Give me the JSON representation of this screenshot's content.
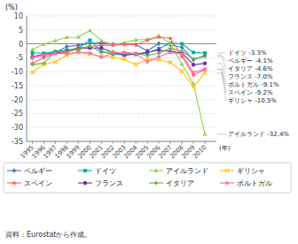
{
  "chart_data": {
    "type": "line",
    "x_label": "(年)",
    "y_label": "(%)",
    "x": [
      1995,
      1996,
      1997,
      1998,
      1999,
      2000,
      2001,
      2002,
      2003,
      2004,
      2005,
      2006,
      2007,
      2008,
      2009,
      2010
    ],
    "xlim": [
      1994.5,
      2011.0
    ],
    "xticks": [
      1995,
      1996,
      1997,
      1998,
      1999,
      2000,
      2001,
      2002,
      2003,
      2004,
      2005,
      2006,
      2007,
      2008,
      2009,
      2010
    ],
    "ylim": [
      -35,
      10
    ],
    "yticks": [
      10,
      5,
      0,
      -5,
      -10,
      -15,
      -20,
      -25,
      -30,
      -35
    ],
    "grid": true,
    "legend": "bottom",
    "series": [
      {
        "name": "ベルギー",
        "color": "#4472c4",
        "marker": "diamond",
        "values": [
          -4.5,
          -3.8,
          -3.1,
          -1.0,
          -0.5,
          0.1,
          0.4,
          -0.1,
          -0.1,
          -0.3,
          -2.5,
          0.1,
          -0.3,
          -1.3,
          -5.8,
          -4.1
        ]
      },
      {
        "name": "ドイツ",
        "color": "#00b0a0",
        "marker": "square",
        "values": [
          -3.3,
          -3.4,
          -2.7,
          -2.3,
          -1.6,
          1.3,
          -2.8,
          -3.7,
          -4.0,
          -3.8,
          -3.3,
          -1.7,
          0.2,
          0.0,
          -3.1,
          -3.3
        ]
      },
      {
        "name": "アイルランド",
        "color": "#92d050",
        "marker": "triangle",
        "values": [
          -2.1,
          -0.1,
          1.1,
          2.3,
          2.4,
          4.8,
          1.1,
          -0.3,
          0.4,
          1.4,
          1.6,
          2.9,
          0.1,
          -7.3,
          -14.3,
          -32.4
        ]
      },
      {
        "name": "ギリシャ",
        "color": "#ffc000",
        "marker": "x",
        "values": [
          -10.2,
          -7.4,
          -6.5,
          -4.1,
          -3.1,
          -3.7,
          -4.5,
          -4.8,
          -5.6,
          -7.4,
          -5.5,
          -5.7,
          -6.7,
          -9.8,
          -15.4,
          -10.5
        ]
      },
      {
        "name": "スペイン",
        "color": "#ff6060",
        "marker": "star",
        "values": [
          -7.0,
          -5.0,
          -3.5,
          -3.0,
          -1.4,
          -1.0,
          -0.5,
          -0.5,
          -0.2,
          -0.3,
          1.3,
          2.4,
          1.9,
          -4.5,
          -11.2,
          -9.2
        ]
      },
      {
        "name": "フランス",
        "color": "#7030a0",
        "marker": "circle",
        "values": [
          -5.0,
          -4.0,
          -3.3,
          -2.6,
          -1.8,
          -1.5,
          -1.5,
          -3.1,
          -4.0,
          -3.6,
          -3.0,
          -2.3,
          -2.7,
          -3.3,
          -7.5,
          -7.0
        ]
      },
      {
        "name": "イタリア",
        "color": "#70ad47",
        "marker": "plus",
        "values": [
          -7.4,
          -7.0,
          -2.7,
          -2.8,
          -1.9,
          -0.8,
          -3.1,
          -2.9,
          -3.5,
          -3.5,
          -4.2,
          -3.4,
          -1.6,
          -2.7,
          -5.4,
          -4.6
        ]
      },
      {
        "name": "ポルトガル",
        "color": "#ff69b4",
        "marker": "star",
        "values": [
          -5.0,
          -4.0,
          -3.5,
          -3.5,
          -3.0,
          -3.3,
          -4.8,
          -3.4,
          -3.0,
          -3.5,
          -6.5,
          -4.6,
          -3.1,
          -3.7,
          -10.2,
          -9.1
        ]
      }
    ],
    "annotations": [
      {
        "label": "ドイツ -3.3%",
        "value": -3.3
      },
      {
        "label": "ベルギー -4.1%",
        "value": -4.1
      },
      {
        "label": "イタリア -4.6%",
        "value": -4.6
      },
      {
        "label": "フランス -7.0%",
        "value": -7.0
      },
      {
        "label": "ポルトガル -9.1%",
        "value": -9.1
      },
      {
        "label": "スペイン -9.2%",
        "value": -9.2
      },
      {
        "label": "ギリシャ -10.5%",
        "value": -10.5
      },
      {
        "label": "アイルランド -32.4%",
        "value": -32.4
      }
    ],
    "source": "資料：Eurostatから作成。"
  }
}
